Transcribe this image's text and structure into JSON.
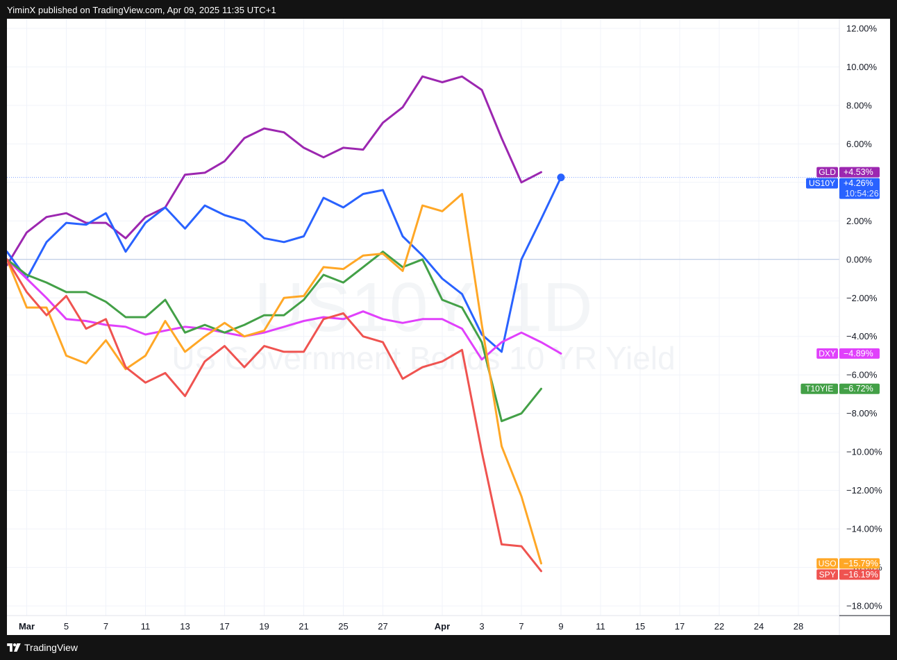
{
  "header": {
    "text": "YiminX published on TradingView.com, Apr 09, 2025 11:35 UTC+1"
  },
  "footer": {
    "brand": "TradingView"
  },
  "watermark": {
    "line1": "US10Y, 1D",
    "line2": "US Government Bonds 10 YR Yield"
  },
  "chart_data": {
    "type": "line",
    "ylim": [
      -18.5,
      12.5
    ],
    "y_ticks": [
      "12.00%",
      "10.00%",
      "8.00%",
      "6.00%",
      "4.00%",
      "2.00%",
      "0.00%",
      "−2.00%",
      "−4.00%",
      "−6.00%",
      "−8.00%",
      "−10.00%",
      "−12.00%",
      "−14.00%",
      "−16.00%",
      "−18.00%"
    ],
    "y_tick_values": [
      12,
      10,
      8,
      6,
      4,
      2,
      0,
      -2,
      -4,
      -6,
      -8,
      -10,
      -12,
      -14,
      -16,
      -18
    ],
    "x_ticks": [
      {
        "label": "Mar",
        "i": 1,
        "bold": true
      },
      {
        "label": "5",
        "i": 3
      },
      {
        "label": "7",
        "i": 5
      },
      {
        "label": "11",
        "i": 7
      },
      {
        "label": "13",
        "i": 9
      },
      {
        "label": "17",
        "i": 11
      },
      {
        "label": "19",
        "i": 13
      },
      {
        "label": "21",
        "i": 15
      },
      {
        "label": "25",
        "i": 17
      },
      {
        "label": "27",
        "i": 19
      },
      {
        "label": "Apr",
        "i": 22,
        "bold": true
      },
      {
        "label": "3",
        "i": 24
      },
      {
        "label": "7",
        "i": 26
      },
      {
        "label": "9",
        "i": 28
      },
      {
        "label": "11",
        "i": 30
      },
      {
        "label": "15",
        "i": 32
      },
      {
        "label": "17",
        "i": 34
      },
      {
        "label": "22",
        "i": 36
      },
      {
        "label": "24",
        "i": 38
      },
      {
        "label": "28",
        "i": 40
      }
    ],
    "series": [
      {
        "name": "GLD",
        "color": "#9c27b0",
        "badge_value": "+4.53%",
        "last_value": 4.53,
        "values": [
          -0.3,
          1.4,
          2.2,
          2.4,
          1.9,
          1.9,
          1.1,
          2.2,
          2.7,
          4.4,
          4.5,
          5.1,
          6.3,
          6.8,
          6.6,
          5.8,
          5.3,
          5.8,
          5.7,
          7.1,
          7.9,
          9.5,
          9.2,
          9.5,
          8.8,
          6.3,
          4.0,
          4.53
        ]
      },
      {
        "name": "US10Y",
        "color": "#2962ff",
        "badge_value": "+4.26%",
        "badge_sub": "10:54:26",
        "last_value": 4.26,
        "values": [
          0.4,
          -1.0,
          0.9,
          1.9,
          1.8,
          2.4,
          0.4,
          1.9,
          2.7,
          1.6,
          2.8,
          2.3,
          2.0,
          1.1,
          0.9,
          1.2,
          3.2,
          2.7,
          3.4,
          3.6,
          1.2,
          0.2,
          -1.0,
          -1.8,
          -3.9,
          -4.8,
          0.0,
          2.1,
          4.26
        ]
      },
      {
        "name": "DXY",
        "color": "#e040fb",
        "badge_value": "−4.89%",
        "last_value": -4.89,
        "values": [
          0.0,
          -1.0,
          -2.0,
          -3.1,
          -3.2,
          -3.4,
          -3.5,
          -3.9,
          -3.7,
          -3.5,
          -3.6,
          -3.8,
          -4.0,
          -3.8,
          -3.5,
          -3.2,
          -3.0,
          -3.1,
          -2.7,
          -3.1,
          -3.3,
          -3.1,
          -3.1,
          -3.6,
          -5.2,
          -4.3,
          -3.8,
          -4.3,
          -4.89
        ]
      },
      {
        "name": "T10YIE",
        "color": "#43a047",
        "badge_value": "−6.72%",
        "last_value": -6.72,
        "values": [
          0.0,
          -0.8,
          -1.2,
          -1.7,
          -1.7,
          -2.2,
          -3.0,
          -3.0,
          -2.1,
          -3.8,
          -3.4,
          -3.8,
          -3.4,
          -2.9,
          -2.9,
          -2.1,
          -0.8,
          -1.2,
          -0.4,
          0.4,
          -0.4,
          0.0,
          -2.1,
          -2.5,
          -4.3,
          -8.4,
          -8.0,
          -6.72
        ]
      },
      {
        "name": "USO",
        "color": "#ffa726",
        "badge_value": "−15.79%",
        "last_value": -15.79,
        "values": [
          0.0,
          -2.5,
          -2.5,
          -5.0,
          -5.4,
          -4.2,
          -5.7,
          -5.0,
          -3.2,
          -4.8,
          -4.0,
          -3.3,
          -4.0,
          -3.7,
          -2.0,
          -1.9,
          -0.4,
          -0.5,
          0.2,
          0.3,
          -0.6,
          2.8,
          2.5,
          3.4,
          -3.4,
          -9.7,
          -12.3,
          -15.79
        ]
      },
      {
        "name": "SPY",
        "color": "#ef5350",
        "badge_value": "−16.19%",
        "last_value": -16.19,
        "values": [
          0.0,
          -1.7,
          -2.9,
          -1.9,
          -3.6,
          -3.1,
          -5.6,
          -6.4,
          -5.9,
          -7.1,
          -5.3,
          -4.5,
          -5.6,
          -4.5,
          -4.8,
          -4.8,
          -3.1,
          -2.8,
          -4.0,
          -4.3,
          -6.2,
          -5.6,
          -5.3,
          -4.7,
          -10.0,
          -14.8,
          -14.9,
          -16.19
        ]
      }
    ]
  }
}
